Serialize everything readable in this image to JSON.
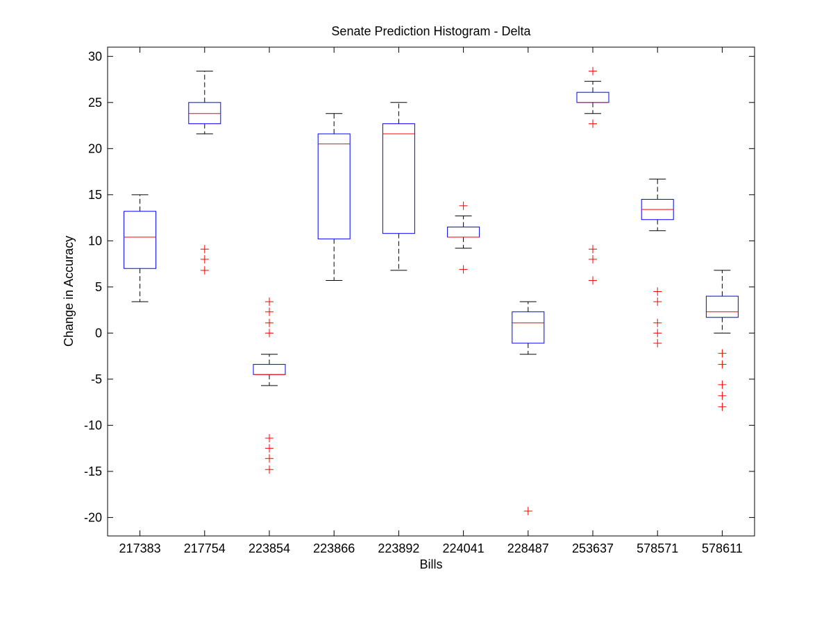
{
  "chart_data": {
    "type": "boxplot",
    "title": "Senate Prediction Histogram - Delta",
    "xlabel": "Bills",
    "ylabel": "Change in Accuracy",
    "ylim": [
      -22,
      31
    ],
    "yticks": [
      -20,
      -15,
      -10,
      -5,
      0,
      5,
      10,
      15,
      20,
      25,
      30
    ],
    "grid": false,
    "colors": {
      "box": "#0000ff",
      "median": "#ff0000",
      "whisker": "#000000",
      "outlier": "#ff0000"
    },
    "categories": [
      "217383",
      "217754",
      "223854",
      "223866",
      "223892",
      "224041",
      "228487",
      "253637",
      "578571",
      "578611"
    ],
    "boxes": [
      {
        "category": "217383",
        "q1": 7.0,
        "median": 10.4,
        "q3": 13.2,
        "whisker_low": 3.4,
        "whisker_high": 15.0,
        "outliers": []
      },
      {
        "category": "217754",
        "q1": 22.7,
        "median": 23.8,
        "q3": 25.0,
        "whisker_low": 21.6,
        "whisker_high": 28.4,
        "outliers": [
          9.1,
          8.0,
          6.8
        ]
      },
      {
        "category": "223854",
        "q1": -4.5,
        "median": -4.5,
        "q3": -3.4,
        "whisker_low": -5.7,
        "whisker_high": -2.3,
        "outliers": [
          3.4,
          2.3,
          1.1,
          0.0,
          -11.4,
          -12.5,
          -13.6,
          -14.8
        ]
      },
      {
        "category": "223866",
        "q1": 10.2,
        "median": 20.5,
        "q3": 21.6,
        "whisker_low": 5.7,
        "whisker_high": 23.8,
        "outliers": []
      },
      {
        "category": "223892",
        "q1": 10.8,
        "median": 21.6,
        "q3": 22.7,
        "whisker_low": 6.8,
        "whisker_high": 25.0,
        "outliers": []
      },
      {
        "category": "224041",
        "q1": 10.4,
        "median": 10.4,
        "q3": 11.5,
        "whisker_low": 9.2,
        "whisker_high": 12.7,
        "outliers": [
          13.8,
          6.9
        ]
      },
      {
        "category": "228487",
        "q1": -1.1,
        "median": 1.1,
        "q3": 2.3,
        "whisker_low": -2.3,
        "whisker_high": 3.4,
        "outliers": [
          -19.3
        ]
      },
      {
        "category": "253637",
        "q1": 25.0,
        "median": 25.0,
        "q3": 26.1,
        "whisker_low": 23.8,
        "whisker_high": 27.3,
        "outliers": [
          28.4,
          22.7,
          9.1,
          8.0,
          5.7
        ]
      },
      {
        "category": "578571",
        "q1": 12.3,
        "median": 13.4,
        "q3": 14.5,
        "whisker_low": 11.1,
        "whisker_high": 16.7,
        "outliers": [
          4.5,
          3.4,
          1.1,
          0.0,
          -1.1
        ]
      },
      {
        "category": "578611",
        "q1": 1.7,
        "median": 2.3,
        "q3": 4.0,
        "whisker_low": 0.0,
        "whisker_high": 6.8,
        "outliers": [
          -2.2,
          -3.4,
          -5.6,
          -6.8,
          -8.0
        ]
      }
    ]
  }
}
